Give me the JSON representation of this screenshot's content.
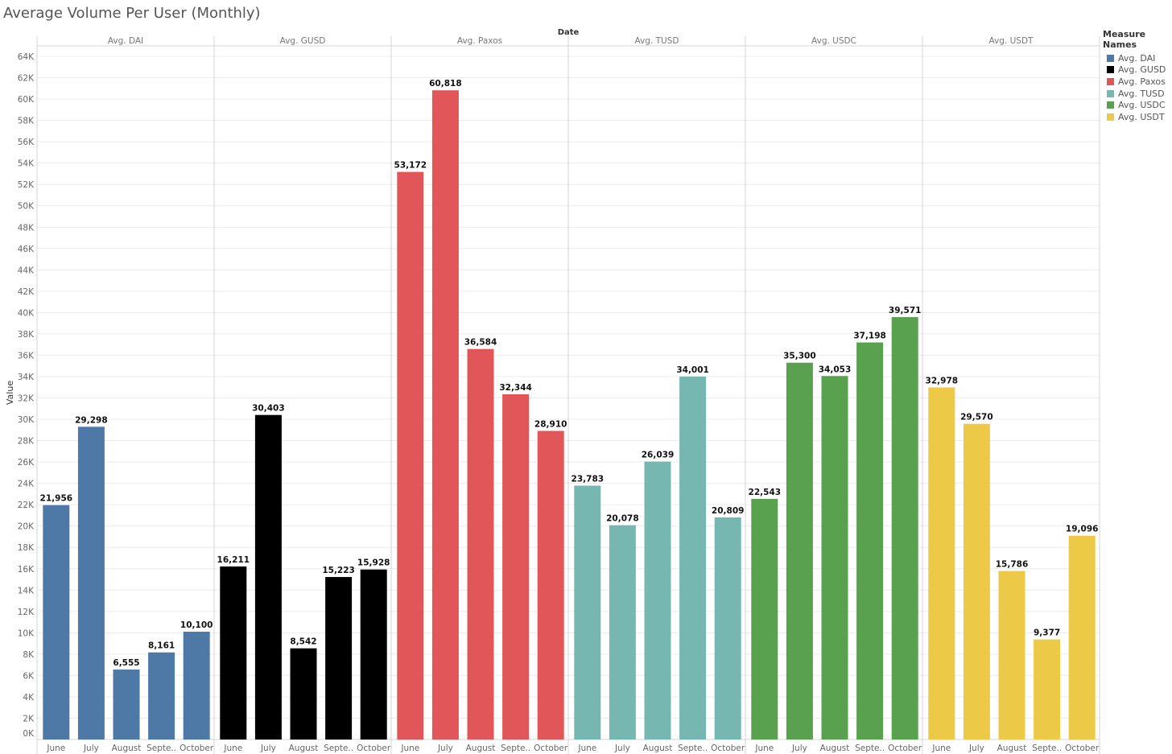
{
  "title": "Average Volume Per User (Monthly)",
  "legend": {
    "title": "Measure Names",
    "items": [
      {
        "label": "Avg. DAI",
        "color": "#4e79a7"
      },
      {
        "label": "Avg. GUSD",
        "color": "#000000"
      },
      {
        "label": "Avg. Paxos",
        "color": "#e15759"
      },
      {
        "label": "Avg. TUSD",
        "color": "#76b7b2"
      },
      {
        "label": "Avg. USDC",
        "color": "#59a14f"
      },
      {
        "label": "Avg. USDT",
        "color": "#edc948"
      }
    ]
  },
  "chart_data": {
    "type": "bar",
    "column_header": "Date",
    "ylabel": "Value",
    "xlabel": "",
    "ylim": [
      0,
      65000
    ],
    "yticks": [
      {
        "value": 0,
        "label": "0K"
      },
      {
        "value": 2000,
        "label": "2K"
      },
      {
        "value": 4000,
        "label": "4K"
      },
      {
        "value": 6000,
        "label": "6K"
      },
      {
        "value": 8000,
        "label": "8K"
      },
      {
        "value": 10000,
        "label": "10K"
      },
      {
        "value": 12000,
        "label": "12K"
      },
      {
        "value": 14000,
        "label": "14K"
      },
      {
        "value": 16000,
        "label": "16K"
      },
      {
        "value": 18000,
        "label": "18K"
      },
      {
        "value": 20000,
        "label": "20K"
      },
      {
        "value": 22000,
        "label": "22K"
      },
      {
        "value": 24000,
        "label": "24K"
      },
      {
        "value": 26000,
        "label": "26K"
      },
      {
        "value": 28000,
        "label": "28K"
      },
      {
        "value": 30000,
        "label": "30K"
      },
      {
        "value": 32000,
        "label": "32K"
      },
      {
        "value": 34000,
        "label": "34K"
      },
      {
        "value": 36000,
        "label": "36K"
      },
      {
        "value": 38000,
        "label": "38K"
      },
      {
        "value": 40000,
        "label": "40K"
      },
      {
        "value": 42000,
        "label": "42K"
      },
      {
        "value": 44000,
        "label": "44K"
      },
      {
        "value": 46000,
        "label": "46K"
      },
      {
        "value": 48000,
        "label": "48K"
      },
      {
        "value": 50000,
        "label": "50K"
      },
      {
        "value": 52000,
        "label": "52K"
      },
      {
        "value": 54000,
        "label": "54K"
      },
      {
        "value": 56000,
        "label": "56K"
      },
      {
        "value": 58000,
        "label": "58K"
      },
      {
        "value": 60000,
        "label": "60K"
      },
      {
        "value": 62000,
        "label": "62K"
      },
      {
        "value": 64000,
        "label": "64K"
      }
    ],
    "categories": [
      "June",
      "July",
      "August",
      "Septe..",
      "October"
    ],
    "series": [
      {
        "name": "Avg. DAI",
        "color": "#4e79a7",
        "values": [
          21956,
          29298,
          6555,
          8161,
          10100
        ],
        "labels": [
          "21,956",
          "29,298",
          "6,555",
          "8,161",
          "10,100"
        ]
      },
      {
        "name": "Avg. GUSD",
        "color": "#000000",
        "values": [
          16211,
          30403,
          8542,
          15223,
          15928
        ],
        "labels": [
          "16,211",
          "30,403",
          "8,542",
          "15,223",
          "15,928"
        ]
      },
      {
        "name": "Avg. Paxos",
        "color": "#e15759",
        "values": [
          53172,
          60818,
          36584,
          32344,
          28910
        ],
        "labels": [
          "53,172",
          "60,818",
          "36,584",
          "32,344",
          "28,910"
        ]
      },
      {
        "name": "Avg. TUSD",
        "color": "#76b7b2",
        "values": [
          23783,
          20078,
          26039,
          34001,
          20809
        ],
        "labels": [
          "23,783",
          "20,078",
          "26,039",
          "34,001",
          "20,809"
        ]
      },
      {
        "name": "Avg. USDC",
        "color": "#59a14f",
        "values": [
          22543,
          35300,
          34053,
          37198,
          39571
        ],
        "labels": [
          "22,543",
          "35,300",
          "34,053",
          "37,198",
          "39,571"
        ]
      },
      {
        "name": "Avg. USDT",
        "color": "#edc948",
        "values": [
          32978,
          29570,
          15786,
          9377,
          19096
        ],
        "labels": [
          "32,978",
          "29,570",
          "15,786",
          "9,377",
          "19,096"
        ]
      }
    ],
    "grid": true,
    "legend_position": "right"
  }
}
